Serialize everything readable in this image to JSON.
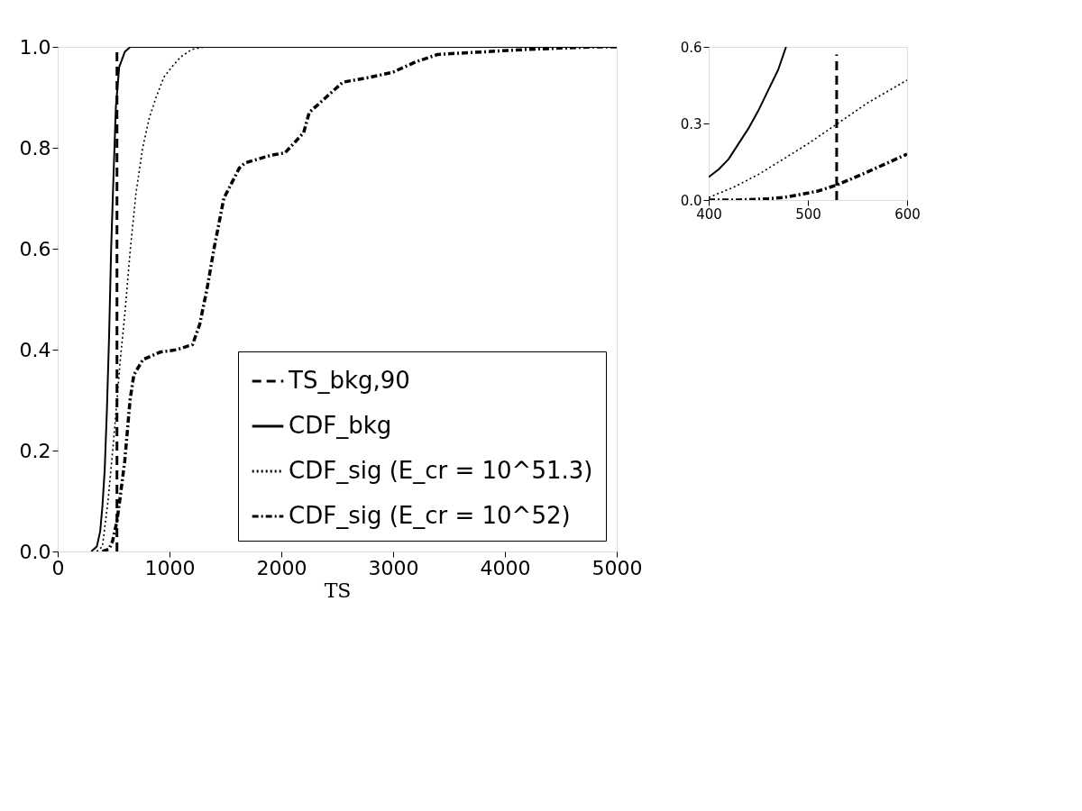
{
  "chart_data": [
    {
      "type": "line",
      "xlabel": "TS",
      "xlim": [
        0,
        5000
      ],
      "ylim": [
        0,
        1
      ],
      "xticks": [
        0,
        1000,
        2000,
        3000,
        4000,
        5000
      ],
      "yticks": [
        {
          "value": 0,
          "label": "0.0"
        },
        {
          "value": 0.2,
          "label": "0.2"
        },
        {
          "value": 0.4,
          "label": "0.4"
        },
        {
          "value": 0.6,
          "label": "0.6"
        },
        {
          "value": 0.8,
          "label": "0.8"
        },
        {
          "value": 1,
          "label": "1.0"
        }
      ],
      "legend": "bottom right",
      "grid": false,
      "series": [
        {
          "name": "TS_bkg,90",
          "color": "#000000",
          "line_style": "dashed",
          "x": [
            530,
            530
          ],
          "values": [
            0,
            1
          ]
        },
        {
          "name": "CDF_bkg",
          "color": "#000000",
          "line_style": "solid",
          "x": [
            300,
            350,
            380,
            400,
            420,
            440,
            460,
            478,
            500,
            520,
            550,
            600,
            650,
            5000
          ],
          "values": [
            0,
            0.01,
            0.04,
            0.09,
            0.16,
            0.28,
            0.43,
            0.6,
            0.75,
            0.88,
            0.96,
            0.99,
            1.0,
            1.0
          ]
        },
        {
          "name": "CDF_sig (E_cr = 10^51.3)",
          "color": "#000000",
          "line_style": "dotted",
          "x": [
            350,
            400,
            450,
            500,
            530,
            560,
            600,
            650,
            700,
            760,
            820,
            880,
            950,
            1020,
            1100,
            1200,
            1320,
            5000
          ],
          "values": [
            0,
            0.01,
            0.1,
            0.22,
            0.3,
            0.38,
            0.47,
            0.6,
            0.71,
            0.8,
            0.86,
            0.9,
            0.94,
            0.96,
            0.98,
            0.995,
            1.0,
            1.0
          ]
        },
        {
          "name": "CDF_sig (E_cr = 10^52)",
          "color": "#000000",
          "line_style": "dashdot",
          "x": [
            400,
            460,
            490,
            530,
            560,
            600,
            647,
            681,
            762,
            915,
            1066,
            1206,
            1270,
            1335,
            1398,
            1486,
            1625,
            1677,
            1905,
            2033,
            2200,
            2250,
            2400,
            2550,
            2800,
            3000,
            3200,
            3400,
            3800,
            4200,
            4800,
            5000
          ],
          "values": [
            0,
            0.005,
            0.02,
            0.06,
            0.11,
            0.18,
            0.3,
            0.35,
            0.38,
            0.395,
            0.4,
            0.41,
            0.45,
            0.52,
            0.6,
            0.7,
            0.76,
            0.77,
            0.785,
            0.79,
            0.83,
            0.87,
            0.9,
            0.93,
            0.94,
            0.95,
            0.97,
            0.985,
            0.99,
            0.995,
            1.0,
            1.0
          ]
        }
      ]
    },
    {
      "type": "line",
      "xlim": [
        400,
        600
      ],
      "ylim": [
        0,
        0.6
      ],
      "xticks": [
        400,
        500,
        600
      ],
      "yticks": [
        {
          "value": 0,
          "label": "0.0"
        },
        {
          "value": 0.3,
          "label": "0.3"
        },
        {
          "value": 0.6,
          "label": "0.6"
        }
      ],
      "grid": false,
      "series": [
        {
          "color": "#000000",
          "line_style": "dashed",
          "x": [
            529,
            529
          ],
          "values": [
            0,
            0.57
          ]
        },
        {
          "color": "#000000",
          "line_style": "solid",
          "x": [
            400,
            410,
            420,
            430,
            440,
            450,
            460,
            470,
            478
          ],
          "values": [
            0.09,
            0.12,
            0.16,
            0.22,
            0.28,
            0.35,
            0.43,
            0.51,
            0.6
          ]
        },
        {
          "color": "#000000",
          "line_style": "dotted",
          "x": [
            400,
            425,
            450,
            475,
            500,
            530,
            560,
            600
          ],
          "values": [
            0.01,
            0.05,
            0.1,
            0.16,
            0.22,
            0.3,
            0.38,
            0.47
          ]
        },
        {
          "color": "#000000",
          "line_style": "dashdot",
          "x": [
            400,
            430,
            460,
            475,
            490,
            510,
            530,
            545,
            560,
            580,
            600
          ],
          "values": [
            0,
            0,
            0.005,
            0.01,
            0.02,
            0.035,
            0.06,
            0.085,
            0.11,
            0.145,
            0.18
          ]
        }
      ]
    }
  ]
}
